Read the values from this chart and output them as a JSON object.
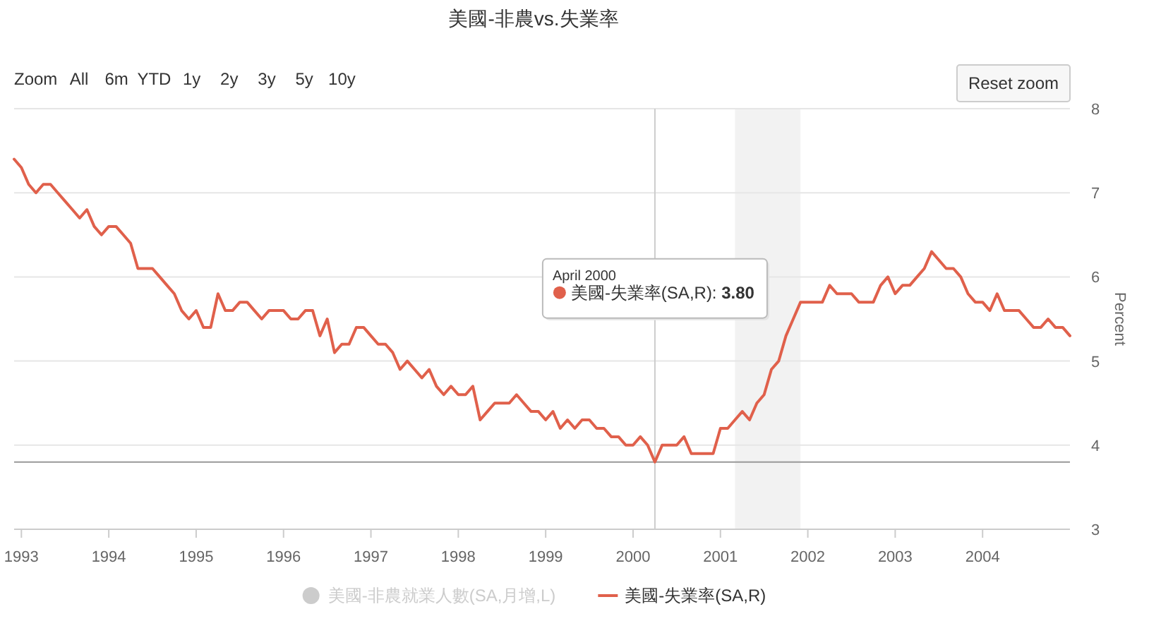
{
  "chart_data": {
    "type": "line",
    "title": "美國-非農vs.失業率",
    "ylabel": "Percent",
    "x": [
      "1992-12",
      "1993-01",
      "1993-02",
      "1993-03",
      "1993-04",
      "1993-05",
      "1993-06",
      "1993-07",
      "1993-08",
      "1993-09",
      "1993-10",
      "1993-11",
      "1993-12",
      "1994-01",
      "1994-02",
      "1994-03",
      "1994-04",
      "1994-05",
      "1994-06",
      "1994-07",
      "1994-08",
      "1994-09",
      "1994-10",
      "1994-11",
      "1994-12",
      "1995-01",
      "1995-02",
      "1995-03",
      "1995-04",
      "1995-05",
      "1995-06",
      "1995-07",
      "1995-08",
      "1995-09",
      "1995-10",
      "1995-11",
      "1995-12",
      "1996-01",
      "1996-02",
      "1996-03",
      "1996-04",
      "1996-05",
      "1996-06",
      "1996-07",
      "1996-08",
      "1996-09",
      "1996-10",
      "1996-11",
      "1996-12",
      "1997-01",
      "1997-02",
      "1997-03",
      "1997-04",
      "1997-05",
      "1997-06",
      "1997-07",
      "1997-08",
      "1997-09",
      "1997-10",
      "1997-11",
      "1997-12",
      "1998-01",
      "1998-02",
      "1998-03",
      "1998-04",
      "1998-05",
      "1998-06",
      "1998-07",
      "1998-08",
      "1998-09",
      "1998-10",
      "1998-11",
      "1998-12",
      "1999-01",
      "1999-02",
      "1999-03",
      "1999-04",
      "1999-05",
      "1999-06",
      "1999-07",
      "1999-08",
      "1999-09",
      "1999-10",
      "1999-11",
      "1999-12",
      "2000-01",
      "2000-02",
      "2000-03",
      "2000-04",
      "2000-05",
      "2000-06",
      "2000-07",
      "2000-08",
      "2000-09",
      "2000-10",
      "2000-11",
      "2000-12",
      "2001-01",
      "2001-02",
      "2001-03",
      "2001-04",
      "2001-05",
      "2001-06",
      "2001-07",
      "2001-08",
      "2001-09",
      "2001-10",
      "2001-11",
      "2001-12",
      "2002-01",
      "2002-02",
      "2002-03",
      "2002-04",
      "2002-05",
      "2002-06",
      "2002-07",
      "2002-08",
      "2002-09",
      "2002-10",
      "2002-11",
      "2002-12",
      "2003-01",
      "2003-02",
      "2003-03",
      "2003-04",
      "2003-05",
      "2003-06",
      "2003-07",
      "2003-08",
      "2003-09",
      "2003-10",
      "2003-11",
      "2003-12",
      "2004-01",
      "2004-02",
      "2004-03",
      "2004-04",
      "2004-05",
      "2004-06",
      "2004-07",
      "2004-08",
      "2004-09",
      "2004-10",
      "2004-11",
      "2004-12",
      "2005-01"
    ],
    "series": [
      {
        "name": "美國-非農就業人數(SA,月增,L)",
        "type": "bar",
        "color": "#cccccc",
        "values": [
          null,
          null,
          null,
          null,
          null,
          null,
          null,
          null,
          null,
          null,
          null,
          null,
          null,
          null,
          null,
          null,
          null,
          null,
          null,
          null,
          null,
          null,
          null,
          null,
          null,
          null,
          null,
          null,
          null,
          null,
          null,
          null,
          null,
          null,
          null,
          null,
          null,
          null,
          null,
          null,
          null,
          null,
          null,
          null,
          null,
          null,
          null,
          null,
          null,
          null,
          null,
          null,
          null,
          null,
          null,
          null,
          null,
          null,
          null,
          null,
          null,
          null,
          null,
          null,
          null,
          null,
          null,
          null,
          null,
          null,
          null,
          null,
          null,
          null,
          null,
          null,
          null,
          null,
          null,
          null,
          null,
          null,
          null,
          null,
          null,
          null,
          null,
          null,
          null,
          null,
          null,
          null,
          null,
          null,
          null,
          null,
          null,
          null,
          null,
          null,
          null,
          null,
          null,
          null,
          null,
          null,
          null,
          null,
          null,
          null,
          null,
          null,
          null,
          null,
          null,
          null,
          null,
          null,
          null,
          null,
          null,
          null,
          null,
          null,
          null,
          null,
          null,
          null,
          null,
          null,
          null,
          null,
          null,
          null,
          null,
          null,
          null,
          null,
          null,
          null,
          null,
          null,
          null,
          null,
          null,
          null
        ]
      },
      {
        "name": "美國-失業率(SA,R)",
        "color": "#e0604b",
        "values": [
          7.4,
          7.3,
          7.1,
          7.0,
          7.1,
          7.1,
          7.0,
          6.9,
          6.8,
          6.7,
          6.8,
          6.6,
          6.5,
          6.6,
          6.6,
          6.5,
          6.4,
          6.1,
          6.1,
          6.1,
          6.0,
          5.9,
          5.8,
          5.6,
          5.5,
          5.6,
          5.4,
          5.4,
          5.8,
          5.6,
          5.6,
          5.7,
          5.7,
          5.6,
          5.5,
          5.6,
          5.6,
          5.6,
          5.5,
          5.5,
          5.6,
          5.6,
          5.3,
          5.5,
          5.1,
          5.2,
          5.2,
          5.4,
          5.4,
          5.3,
          5.2,
          5.2,
          5.1,
          4.9,
          5.0,
          4.9,
          4.8,
          4.9,
          4.7,
          4.6,
          4.7,
          4.6,
          4.6,
          4.7,
          4.3,
          4.4,
          4.5,
          4.5,
          4.5,
          4.6,
          4.5,
          4.4,
          4.4,
          4.3,
          4.4,
          4.2,
          4.3,
          4.2,
          4.3,
          4.3,
          4.2,
          4.2,
          4.1,
          4.1,
          4.0,
          4.0,
          4.1,
          4.0,
          3.8,
          4.0,
          4.0,
          4.0,
          4.1,
          3.9,
          3.9,
          3.9,
          3.9,
          4.2,
          4.2,
          4.3,
          4.4,
          4.3,
          4.5,
          4.6,
          4.9,
          5.0,
          5.3,
          5.5,
          5.7,
          5.7,
          5.7,
          5.7,
          5.9,
          5.8,
          5.8,
          5.8,
          5.7,
          5.7,
          5.7,
          5.9,
          6.0,
          5.8,
          5.9,
          5.9,
          6.0,
          6.1,
          6.3,
          6.2,
          6.1,
          6.1,
          6.0,
          5.8,
          5.7,
          5.7,
          5.6,
          5.8,
          5.6,
          5.6,
          5.6,
          5.5,
          5.4,
          5.4,
          5.5,
          5.4,
          5.4,
          5.3
        ]
      }
    ],
    "xlim": [
      "1992-12",
      "2005-01"
    ],
    "xticks": [
      "1993",
      "1994",
      "1995",
      "1996",
      "1997",
      "1998",
      "1999",
      "2000",
      "2001",
      "2002",
      "2003",
      "2004"
    ],
    "ylim": [
      3,
      8
    ],
    "yticks": [
      3,
      4,
      5,
      6,
      7,
      8
    ],
    "grid": "y",
    "legend": "bottom",
    "bands": [
      {
        "axis": "x",
        "from": "2001-03",
        "to": "2001-12",
        "color": "#f2f2f2"
      }
    ],
    "ref_lines": [
      {
        "axis": "x",
        "value": "2000-04",
        "color": "#cccccc"
      },
      {
        "axis": "y",
        "value": 3.8,
        "color": "#999999"
      }
    ],
    "annotations": [
      "Zoom",
      "All",
      "6m",
      "YTD",
      "1y",
      "2y",
      "3y",
      "5y",
      "10y",
      "Reset zoom",
      "April 2000",
      "美國-失業率(SA,R): **3.80**"
    ]
  }
}
